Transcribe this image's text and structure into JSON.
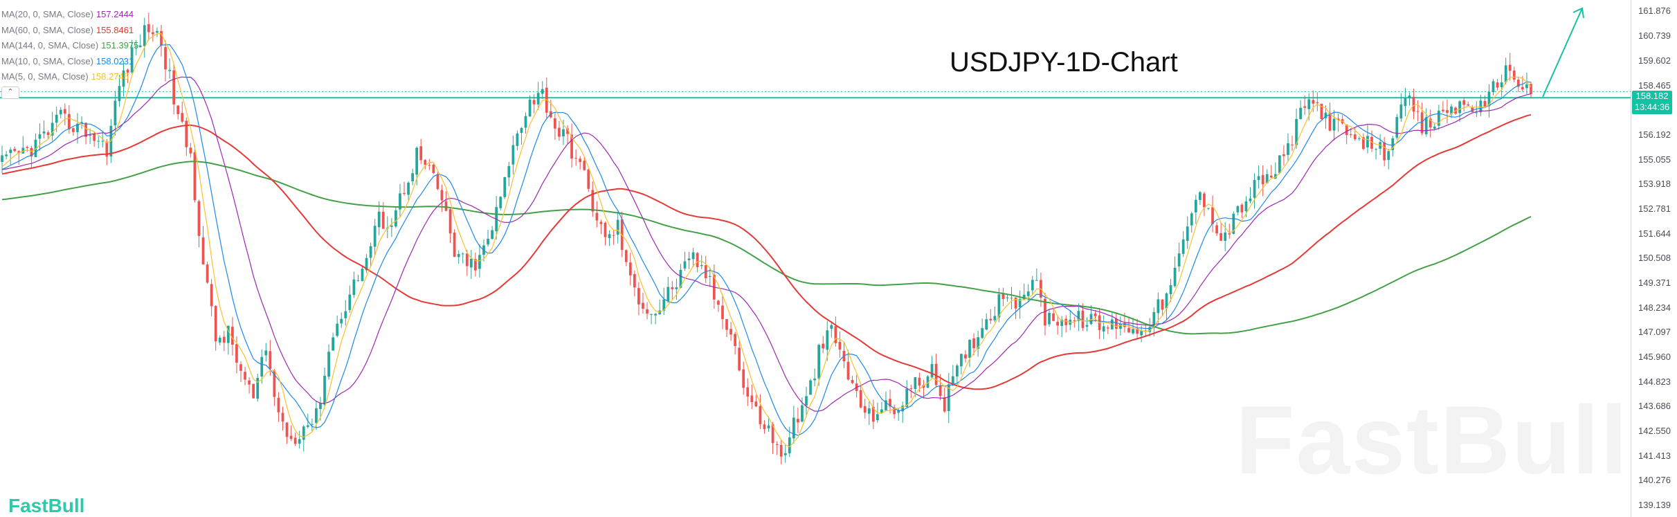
{
  "title": "USDJPY-1D-Chart",
  "legend": [
    {
      "label": "MA(20, 0, SMA, Close)",
      "value": "157.2444",
      "color": "#9c27b0"
    },
    {
      "label": "MA(60, 0, SMA, Close)",
      "value": "155.8461",
      "color": "#e53935"
    },
    {
      "label": "MA(144, 0, SMA, Close)",
      "value": "151.3975",
      "color": "#43a047"
    },
    {
      "label": "MA(10, 0, SMA, Close)",
      "value": "158.0231",
      "color": "#1e88e5"
    },
    {
      "label": "MA(5, 0, SMA, Close)",
      "value": "158.2745",
      "color": "#fbc02d"
    }
  ],
  "collapse_glyph": "⌃",
  "price_badge": {
    "price": "158.182",
    "countdown": "13:44:36",
    "color": "#13c2a2"
  },
  "watermark": "FastBull",
  "brand": "FastBull",
  "colors": {
    "up": "#26a69a",
    "down": "#ef5350",
    "level": "#13c2a2",
    "axis_text": "#4a4d57"
  },
  "chart_data": {
    "type": "line",
    "instrument": "USDJPY",
    "timeframe": "1D",
    "y_axis_ticks": [
      "161.876",
      "160.739",
      "159.602",
      "158.465",
      "157.329",
      "156.192",
      "155.055",
      "153.918",
      "152.781",
      "151.644",
      "150.508",
      "149.371",
      "148.234",
      "147.097",
      "145.960",
      "144.823",
      "143.686",
      "142.550",
      "141.413",
      "140.276",
      "139.139"
    ],
    "ylim": [
      138.6,
      162.4
    ],
    "horizontal_level": 157.9,
    "close_path": [
      [
        0,
        154.9
      ],
      [
        7,
        155.6
      ],
      [
        14,
        156.9
      ],
      [
        20,
        156.4
      ],
      [
        25,
        155.6
      ],
      [
        28,
        158.5
      ],
      [
        32,
        160.3
      ],
      [
        35,
        161.2
      ],
      [
        38,
        160.5
      ],
      [
        42,
        157.0
      ],
      [
        45,
        155.2
      ],
      [
        48,
        150.3
      ],
      [
        51,
        146.8
      ],
      [
        54,
        147.0
      ],
      [
        57,
        145.3
      ],
      [
        60,
        144.0
      ],
      [
        63,
        146.3
      ],
      [
        66,
        143.3
      ],
      [
        69,
        142.2
      ],
      [
        72,
        142.8
      ],
      [
        75,
        143.2
      ],
      [
        78,
        146.3
      ],
      [
        81,
        148.0
      ],
      [
        84,
        149.3
      ],
      [
        87,
        150.5
      ],
      [
        90,
        152.3
      ],
      [
        93,
        152.2
      ],
      [
        96,
        153.8
      ],
      [
        99,
        155.3
      ],
      [
        102,
        154.5
      ],
      [
        105,
        153.2
      ],
      [
        108,
        150.8
      ],
      [
        111,
        150.1
      ],
      [
        114,
        150.4
      ],
      [
        117,
        151.9
      ],
      [
        120,
        154.0
      ],
      [
        123,
        156.4
      ],
      [
        126,
        157.8
      ],
      [
        129,
        158.1
      ],
      [
        132,
        156.6
      ],
      [
        135,
        155.9
      ],
      [
        138,
        154.8
      ],
      [
        141,
        153.0
      ],
      [
        144,
        151.3
      ],
      [
        147,
        152.0
      ],
      [
        150,
        149.4
      ],
      [
        153,
        148.4
      ],
      [
        156,
        148.0
      ],
      [
        159,
        148.9
      ],
      [
        162,
        149.7
      ],
      [
        165,
        150.5
      ],
      [
        168,
        149.8
      ],
      [
        171,
        148.3
      ],
      [
        174,
        147.3
      ],
      [
        177,
        144.6
      ],
      [
        180,
        143.4
      ],
      [
        183,
        142.6
      ],
      [
        186,
        141.3
      ],
      [
        189,
        142.9
      ],
      [
        192,
        143.9
      ],
      [
        195,
        146.1
      ],
      [
        198,
        147.2
      ],
      [
        201,
        145.7
      ],
      [
        204,
        144.1
      ],
      [
        207,
        143.2
      ],
      [
        210,
        143.7
      ],
      [
        213,
        143.4
      ],
      [
        216,
        144.4
      ],
      [
        219,
        144.8
      ],
      [
        222,
        145.2
      ],
      [
        225,
        143.9
      ],
      [
        228,
        145.3
      ],
      [
        231,
        146.5
      ],
      [
        234,
        147.4
      ],
      [
        237,
        148.3
      ],
      [
        240,
        149.1
      ],
      [
        243,
        148.2
      ],
      [
        246,
        149.8
      ],
      [
        249,
        147.8
      ],
      [
        252,
        147.8
      ],
      [
        255,
        147.6
      ],
      [
        258,
        147.7
      ],
      [
        261,
        147.5
      ],
      [
        264,
        147.3
      ],
      [
        267,
        147.7
      ],
      [
        270,
        147.1
      ],
      [
        273,
        147.5
      ],
      [
        276,
        148.2
      ],
      [
        279,
        149.1
      ],
      [
        282,
        151.2
      ],
      [
        285,
        153.3
      ],
      [
        288,
        153.1
      ],
      [
        291,
        151.3
      ],
      [
        294,
        152.3
      ],
      [
        297,
        153.2
      ],
      [
        300,
        154.0
      ],
      [
        303,
        154.3
      ],
      [
        306,
        155.1
      ],
      [
        309,
        156.6
      ],
      [
        312,
        157.8
      ],
      [
        315,
        157.3
      ],
      [
        318,
        156.6
      ],
      [
        321,
        156.3
      ],
      [
        324,
        155.6
      ],
      [
        327,
        155.9
      ],
      [
        330,
        155.3
      ],
      [
        333,
        156.9
      ],
      [
        336,
        157.7
      ],
      [
        339,
        156.5
      ],
      [
        342,
        156.8
      ],
      [
        345,
        157.4
      ],
      [
        348,
        157.5
      ],
      [
        351,
        157.6
      ],
      [
        354,
        157.3
      ],
      [
        357,
        158.8
      ],
      [
        360,
        159.2
      ],
      [
        363,
        158.4
      ],
      [
        365,
        158.2
      ]
    ],
    "series": [
      {
        "name": "MA(5, 0, SMA, Close)",
        "color": "#fbc02d",
        "period": 5
      },
      {
        "name": "MA(10, 0, SMA, Close)",
        "color": "#1e88e5",
        "period": 10
      },
      {
        "name": "MA(20, 0, SMA, Close)",
        "color": "#9c27b0",
        "period": 20
      },
      {
        "name": "MA(60, 0, SMA, Close)",
        "color": "#e53935",
        "period": 60
      },
      {
        "name": "MA(144, 0, SMA, Close)",
        "color": "#43a047",
        "period": 144
      }
    ],
    "annotation": "arrow-up-right"
  }
}
